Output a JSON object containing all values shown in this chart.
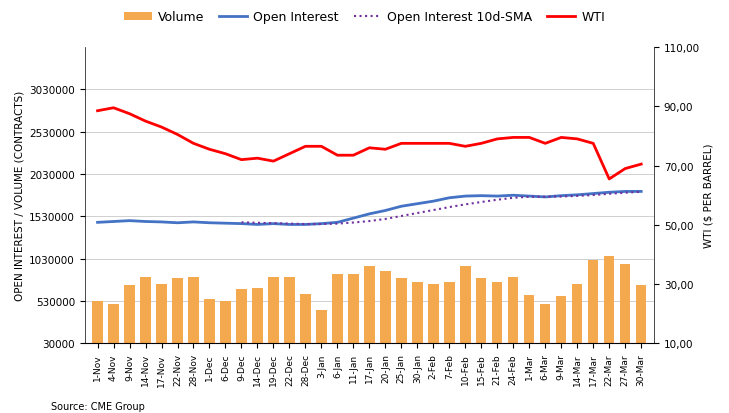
{
  "source_text": "Source: CME Group",
  "ylabel_left": "OPEN INTEREST / VOLUME (CONTRACTS)",
  "ylabel_right": "WTI ($ PER BARREL)",
  "x_labels": [
    "1-Nov",
    "4-Nov",
    "9-Nov",
    "14-Nov",
    "17-Nov",
    "22-Nov",
    "28-Nov",
    "1-Dec",
    "6-Dec",
    "9-Dec",
    "14-Dec",
    "19-Dec",
    "22-Dec",
    "28-Dec",
    "3-Jan",
    "6-Jan",
    "11-Jan",
    "17-Jan",
    "20-Jan",
    "25-Jan",
    "30-Jan",
    "2-Feb",
    "7-Feb",
    "10-Feb",
    "15-Feb",
    "21-Feb",
    "24-Feb",
    "1-Mar",
    "6-Mar",
    "9-Mar",
    "14-Mar",
    "17-Mar",
    "22-Mar",
    "27-Mar",
    "30-Mar"
  ],
  "volume": [
    530000,
    500000,
    720000,
    820000,
    730000,
    800000,
    810000,
    550000,
    530000,
    670000,
    680000,
    820000,
    820000,
    620000,
    420000,
    850000,
    850000,
    950000,
    880000,
    800000,
    760000,
    730000,
    760000,
    950000,
    800000,
    760000,
    810000,
    600000,
    500000,
    590000,
    730000,
    1010000,
    1060000,
    970000,
    720000
  ],
  "open_interest": [
    1460000,
    1470000,
    1480000,
    1470000,
    1465000,
    1455000,
    1465000,
    1455000,
    1450000,
    1445000,
    1435000,
    1445000,
    1435000,
    1435000,
    1445000,
    1460000,
    1510000,
    1560000,
    1600000,
    1650000,
    1680000,
    1710000,
    1750000,
    1770000,
    1775000,
    1770000,
    1780000,
    1770000,
    1760000,
    1775000,
    1785000,
    1800000,
    1815000,
    1825000,
    1825000
  ],
  "open_interest_sma": [
    null,
    null,
    null,
    null,
    null,
    null,
    null,
    null,
    null,
    1460000,
    1455000,
    1450000,
    1445000,
    1440000,
    1440000,
    1445000,
    1458000,
    1475000,
    1500000,
    1535000,
    1570000,
    1605000,
    1640000,
    1672000,
    1700000,
    1727000,
    1750000,
    1762000,
    1763000,
    1765000,
    1772000,
    1782000,
    1797000,
    1810000,
    1820000
  ],
  "wti": [
    88.5,
    89.5,
    87.5,
    85.0,
    83.0,
    80.5,
    77.5,
    75.5,
    74.0,
    72.0,
    72.5,
    71.5,
    74.0,
    76.5,
    76.5,
    73.5,
    73.5,
    76.0,
    75.5,
    77.5,
    77.5,
    77.5,
    77.5,
    76.5,
    77.5,
    79.0,
    79.5,
    79.5,
    77.5,
    79.5,
    79.0,
    77.5,
    65.5,
    69.0,
    70.5
  ],
  "ylim_left": [
    30000,
    3530000
  ],
  "ylim_right": [
    10.0,
    110.0
  ],
  "yticks_left": [
    30000,
    530000,
    1030000,
    1530000,
    2030000,
    2530000,
    3030000
  ],
  "yticks_right": [
    10.0,
    30.0,
    50.0,
    70.0,
    90.0,
    110.0
  ],
  "bar_color": "#F5A94E",
  "open_interest_color": "#4472C4",
  "sma_color": "#7030A0",
  "wti_color": "#FF0000",
  "background_color": "#FFFFFF",
  "grid_color": "#C9C9C9",
  "legend_fontsize": 9,
  "axis_fontsize": 7.5,
  "tick_fontsize": 7.5,
  "xtick_fontsize": 6.5
}
